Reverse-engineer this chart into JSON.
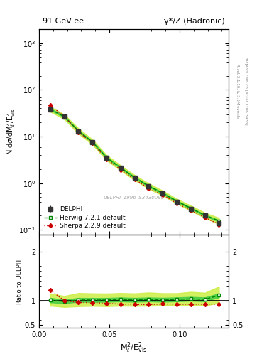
{
  "title_left": "91 GeV ee",
  "title_right": "γ*/Z (Hadronic)",
  "watermark": "DELPHI_1996_S3430090",
  "right_label_top": "Rivet 3.1.10, ≥ 3.5M events",
  "right_label_bot": "mcplots.cern.ch [arXiv:1306.3436]",
  "xlabel": "M$_{\\ell}^2$/E$^2_{\\rm vis}$",
  "ylabel_main": "N dσ/dM$_{\\ell}^2$/E$^2_{\\rm vis}$",
  "ylabel_ratio": "Ratio to DELPHI",
  "delphi_x": [
    0.008,
    0.018,
    0.028,
    0.038,
    0.048,
    0.058,
    0.068,
    0.078,
    0.088,
    0.098,
    0.108,
    0.118,
    0.128
  ],
  "delphi_y": [
    38.0,
    27.0,
    13.0,
    7.5,
    3.5,
    2.1,
    1.3,
    0.85,
    0.6,
    0.4,
    0.28,
    0.2,
    0.14
  ],
  "delphi_yerr": [
    3.0,
    2.0,
    1.0,
    0.6,
    0.3,
    0.18,
    0.12,
    0.08,
    0.06,
    0.04,
    0.03,
    0.02,
    0.02
  ],
  "herwig_x": [
    0.008,
    0.018,
    0.028,
    0.038,
    0.048,
    0.058,
    0.068,
    0.078,
    0.088,
    0.098,
    0.108,
    0.118,
    0.128
  ],
  "herwig_y": [
    38.5,
    26.5,
    13.2,
    7.6,
    3.55,
    2.15,
    1.32,
    0.87,
    0.61,
    0.41,
    0.29,
    0.205,
    0.155
  ],
  "herwig_band_lo": [
    34.0,
    23.5,
    11.5,
    6.7,
    3.1,
    1.88,
    1.16,
    0.76,
    0.54,
    0.365,
    0.255,
    0.18,
    0.133
  ],
  "herwig_band_hi": [
    43.5,
    29.5,
    15.0,
    8.6,
    4.0,
    2.42,
    1.49,
    0.99,
    0.69,
    0.46,
    0.33,
    0.232,
    0.18
  ],
  "sherpa_x": [
    0.008,
    0.018,
    0.028,
    0.038,
    0.048,
    0.058,
    0.068,
    0.078,
    0.088,
    0.098,
    0.108,
    0.118,
    0.128
  ],
  "sherpa_y": [
    46.0,
    27.0,
    12.5,
    7.2,
    3.3,
    1.95,
    1.2,
    0.78,
    0.56,
    0.37,
    0.26,
    0.185,
    0.13
  ],
  "herwig_ratio": [
    1.01,
    0.982,
    1.015,
    1.013,
    1.014,
    1.024,
    1.015,
    1.024,
    1.017,
    1.025,
    1.036,
    1.025,
    1.107
  ],
  "herwig_ratio_lo": [
    0.895,
    0.871,
    0.885,
    0.893,
    0.886,
    0.895,
    0.892,
    0.895,
    0.9,
    0.912,
    0.911,
    0.9,
    0.95
  ],
  "herwig_ratio_hi": [
    1.145,
    1.093,
    1.154,
    1.147,
    1.143,
    1.154,
    1.146,
    1.165,
    1.15,
    1.15,
    1.178,
    1.16,
    1.286
  ],
  "herwig_ratio_inner_lo": [
    0.965,
    0.947,
    0.976,
    0.974,
    0.975,
    0.985,
    0.976,
    0.985,
    0.978,
    0.986,
    0.997,
    0.986,
    1.068
  ],
  "herwig_ratio_inner_hi": [
    1.055,
    1.017,
    1.054,
    1.052,
    1.053,
    1.063,
    1.054,
    1.063,
    1.056,
    1.064,
    1.075,
    1.064,
    1.146
  ],
  "sherpa_ratio": [
    1.21,
    1.0,
    0.962,
    0.96,
    0.943,
    0.929,
    0.923,
    0.918,
    0.933,
    0.925,
    0.929,
    0.925,
    0.929
  ],
  "delphi_color": "#333333",
  "herwig_color": "#008800",
  "sherpa_color": "#cc0000",
  "herwig_band_outer_color": "#ccee44",
  "herwig_band_inner_color": "#44cc44",
  "xlim": [
    0.0,
    0.135
  ],
  "ylim_main": [
    0.08,
    2000
  ],
  "ylim_ratio": [
    0.45,
    2.35
  ]
}
